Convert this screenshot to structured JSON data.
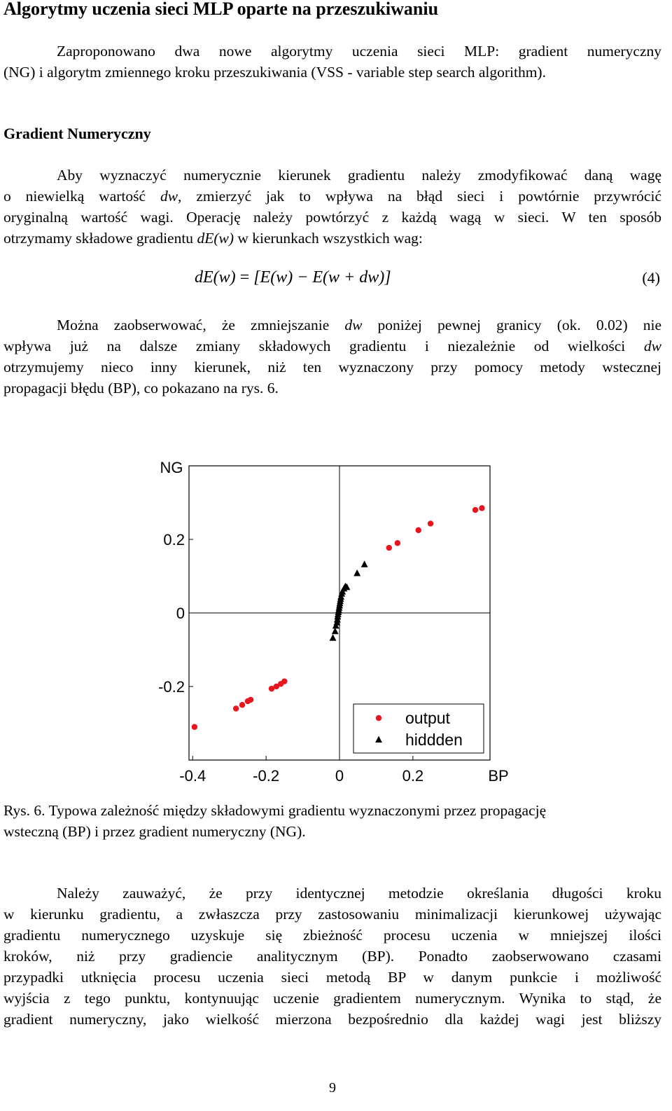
{
  "title": "Algorytmy uczenia sieci MLP oparte na przeszukiwaniu",
  "intro": {
    "line1": "Zaproponowano dwa nowe algorytmy uczenia sieci MLP: gradient numeryczny",
    "line2": "(NG) i algorytm zmiennego kroku przeszukiwania (VSS - variable step search algorithm)."
  },
  "section_heading": "Gradient Numeryczny",
  "para1": {
    "l1": "Aby wyznaczyć numerycznie kierunek gradientu należy zmodyfikować daną wagę",
    "l2a": "o niewielką wartość ",
    "l2var": "dw",
    "l2b": ", zmierzyć jak to wpływa na błąd sieci i powtórnie przywrócić",
    "l3": "oryginalną wartość wagi. Operację należy powtórzyć z każdą wagą w sieci. W ten sposób",
    "l4a": "otrzymamy składowe gradientu ",
    "l4var": "dE(w)",
    "l4b": " w kierunkach wszystkich wag:"
  },
  "equation": {
    "lhs": "dE(w)",
    "eq": " = ",
    "rhs": "[E(w) − E(w + dw)]",
    "number": "(4)"
  },
  "para2": {
    "l1a": "Można zaobserwować, że zmniejszanie ",
    "l1var": "dw",
    "l1b": " poniżej pewnej granicy (ok. 0.02) nie",
    "l2a": "wpływa już na dalsze zmiany składowych gradientu i niezależnie od wielkości ",
    "l2var": "dw",
    "l3": "otrzymujemy nieco inny kierunek, niż ten wyznaczony przy pomocy metody wstecznej",
    "l4": "propagacji błędu (BP), co pokazano na rys. 6."
  },
  "chart_data": {
    "type": "scatter",
    "xlabel": "BP",
    "ylabel": "NG",
    "xlim": [
      -0.41,
      0.41
    ],
    "ylim": [
      -0.4,
      0.4
    ],
    "x_ticks": [
      "-0.4",
      "-0.2",
      "0",
      "0.2"
    ],
    "y_ticks": [
      "0.2",
      "0",
      "-0.2"
    ],
    "x_tick_values": [
      -0.4,
      -0.2,
      0,
      0.2
    ],
    "y_tick_values": [
      0.2,
      0,
      -0.2
    ],
    "zero_lines": true,
    "legend_position": "bottom-right",
    "series": [
      {
        "name": "output",
        "marker": "circle",
        "color": "#e8141e",
        "points": [
          [
            -0.395,
            -0.31
          ],
          [
            -0.282,
            -0.26
          ],
          [
            -0.265,
            -0.25
          ],
          [
            -0.25,
            -0.24
          ],
          [
            -0.242,
            -0.236
          ],
          [
            -0.185,
            -0.206
          ],
          [
            -0.172,
            -0.2
          ],
          [
            -0.16,
            -0.193
          ],
          [
            -0.15,
            -0.186
          ],
          [
            0.135,
            0.177
          ],
          [
            0.158,
            0.19
          ],
          [
            0.215,
            0.225
          ],
          [
            0.248,
            0.243
          ],
          [
            0.37,
            0.28
          ],
          [
            0.388,
            0.285
          ]
        ]
      },
      {
        "name": "hiddden",
        "marker": "triangle",
        "color": "#000000",
        "points": [
          [
            -0.018,
            -0.068
          ],
          [
            -0.012,
            -0.05
          ],
          [
            -0.01,
            -0.035
          ],
          [
            -0.007,
            -0.026
          ],
          [
            -0.006,
            -0.018
          ],
          [
            -0.005,
            -0.01
          ],
          [
            -0.004,
            -0.004
          ],
          [
            -0.003,
            0.002
          ],
          [
            -0.002,
            0.008
          ],
          [
            -0.001,
            0.014
          ],
          [
            0.0,
            0.02
          ],
          [
            0.001,
            0.026
          ],
          [
            0.002,
            0.032
          ],
          [
            0.003,
            0.038
          ],
          [
            0.004,
            0.044
          ],
          [
            0.006,
            0.052
          ],
          [
            0.008,
            0.058
          ],
          [
            0.012,
            0.066
          ],
          [
            0.016,
            0.072
          ],
          [
            0.02,
            0.07
          ],
          [
            0.048,
            0.108
          ],
          [
            0.068,
            0.132
          ]
        ]
      }
    ]
  },
  "caption": {
    "l1": "Rys. 6. Typowa zależność między składowymi gradientu wyznaczonymi przez propagację",
    "l2": "wsteczną (BP) i przez gradient numeryczny (NG)."
  },
  "para3": {
    "l1": "Należy zauważyć, że przy identycznej metodzie określania długości kroku",
    "l2": "w kierunku gradientu, a zwłaszcza przy zastosowaniu minimalizacji kierunkowej używając",
    "l3": "gradientu numerycznego uzyskuje się zbieżność procesu uczenia w mniejszej ilości",
    "l4": "kroków, niż przy gradiencie analitycznym (BP). Ponadto zaobserwowano czasami",
    "l5": "przypadki utknięcia procesu uczenia sieci metodą BP w danym punkcie i możliwość",
    "l6": "wyjścia z tego punktu, kontynuując uczenie gradientem numerycznym. Wynika to stąd, że",
    "l7": "gradient numeryczny, jako wielkość mierzona bezpośrednio dla każdej wagi jest bliższy"
  },
  "page_number": "9"
}
